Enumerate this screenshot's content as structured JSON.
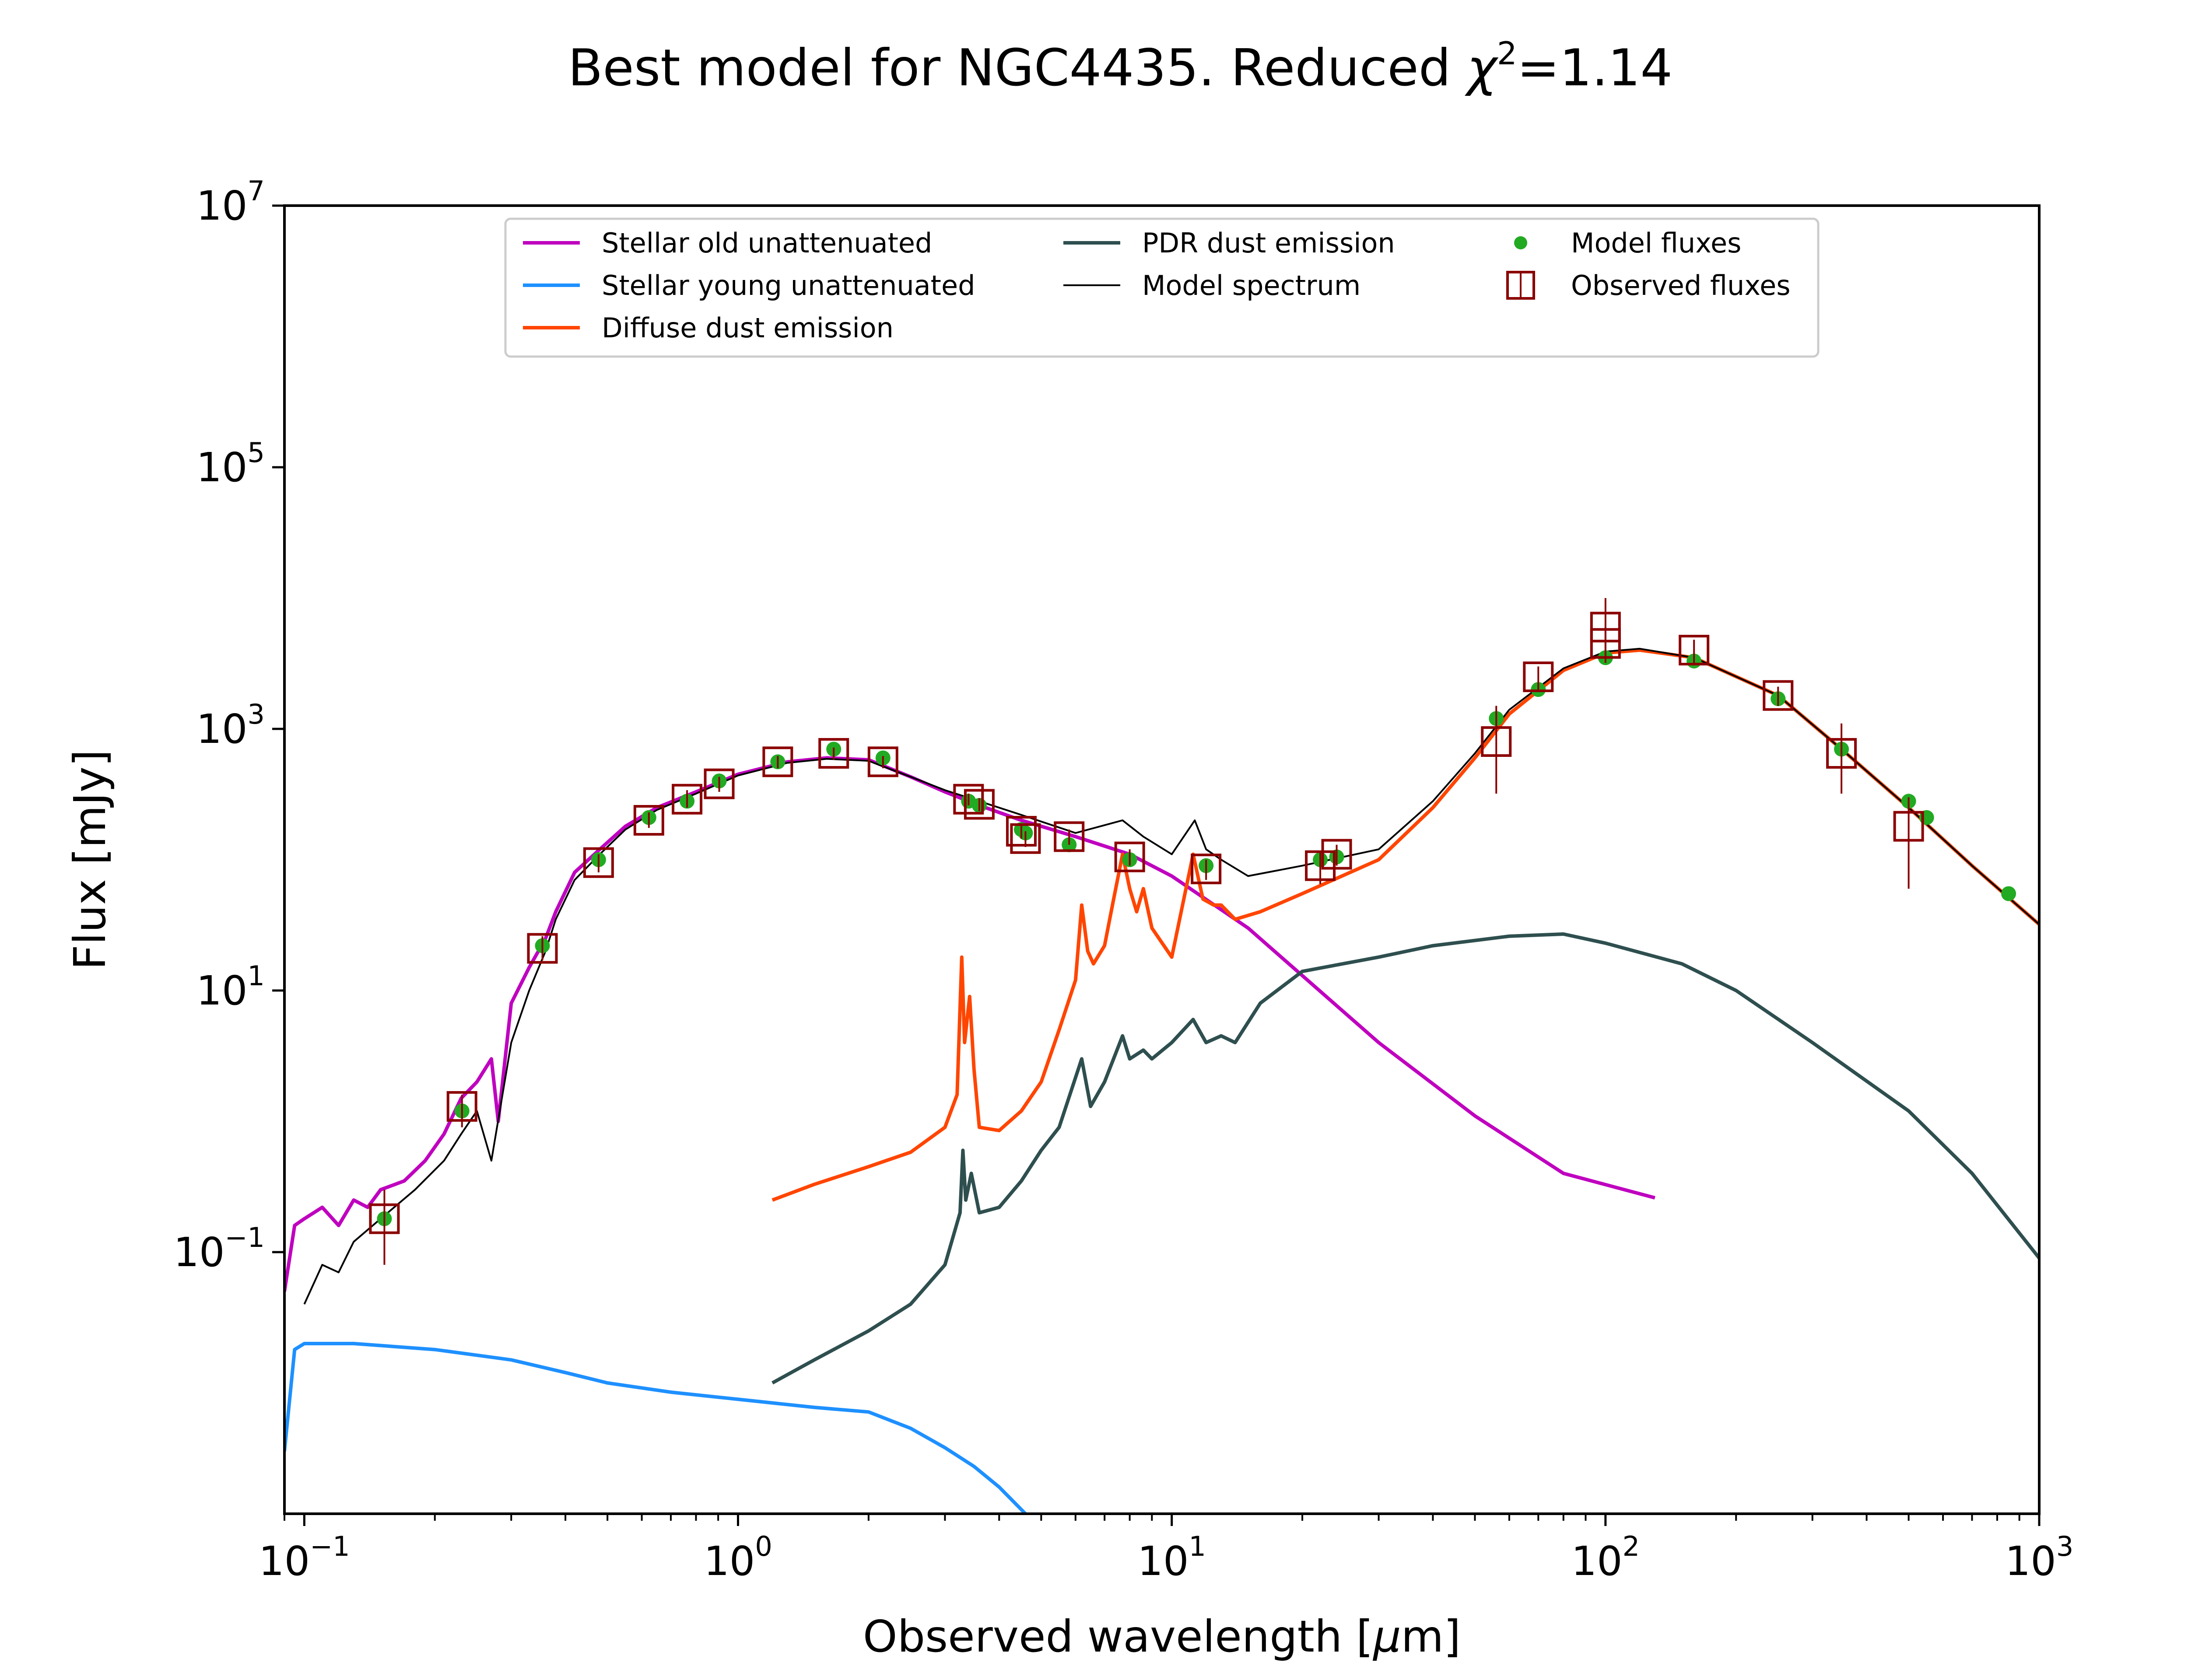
{
  "chart_data": {
    "type": "line",
    "title": "Best model for NGC4435. Reduced χ²=1.14",
    "title_parts": {
      "prefix": "Best model for NGC4435. Reduced ",
      "chi": "χ",
      "sup": "2",
      "suffix": "=1.14"
    },
    "xlabel": "Observed wavelength [μm]",
    "xlabel_parts": {
      "prefix": "Observed wavelength [",
      "mu": "μ",
      "suffix": "m]"
    },
    "ylabel": "Flux [mJy]",
    "xscale": "log",
    "yscale": "log",
    "xlim": [
      0.09,
      1000
    ],
    "ylim": [
      0.001,
      10000000
    ],
    "xticks": [
      {
        "value": 0.1,
        "base": "10",
        "exp": "−1"
      },
      {
        "value": 1,
        "base": "10",
        "exp": "0"
      },
      {
        "value": 10,
        "base": "10",
        "exp": "1"
      },
      {
        "value": 100,
        "base": "10",
        "exp": "2"
      },
      {
        "value": 1000,
        "base": "10",
        "exp": "3"
      }
    ],
    "yticks": [
      {
        "value": 0.1,
        "base": "10",
        "exp": "−1"
      },
      {
        "value": 10,
        "base": "10",
        "exp": "1"
      },
      {
        "value": 1000,
        "base": "10",
        "exp": "3"
      },
      {
        "value": 100000,
        "base": "10",
        "exp": "5"
      },
      {
        "value": 10000000,
        "base": "10",
        "exp": "7"
      }
    ],
    "legend_position": "top",
    "series": [
      {
        "name": "Stellar old unattenuated",
        "kind": "line",
        "color": "#bf00bf",
        "points": [
          [
            0.09,
            0.05
          ],
          [
            0.095,
            0.16
          ],
          [
            0.1,
            0.18
          ],
          [
            0.11,
            0.22
          ],
          [
            0.12,
            0.16
          ],
          [
            0.13,
            0.25
          ],
          [
            0.14,
            0.22
          ],
          [
            0.15,
            0.3
          ],
          [
            0.17,
            0.35
          ],
          [
            0.19,
            0.5
          ],
          [
            0.21,
            0.8
          ],
          [
            0.23,
            1.5
          ],
          [
            0.25,
            2.0
          ],
          [
            0.27,
            3.0
          ],
          [
            0.28,
            1.0
          ],
          [
            0.3,
            8
          ],
          [
            0.33,
            15
          ],
          [
            0.36,
            25
          ],
          [
            0.38,
            40
          ],
          [
            0.42,
            80
          ],
          [
            0.48,
            120
          ],
          [
            0.55,
            180
          ],
          [
            0.65,
            250
          ],
          [
            0.8,
            330
          ],
          [
            1.0,
            450
          ],
          [
            1.3,
            560
          ],
          [
            1.6,
            600
          ],
          [
            2.0,
            580
          ],
          [
            2.5,
            430
          ],
          [
            3.0,
            330
          ],
          [
            3.6,
            260
          ],
          [
            4.5,
            200
          ],
          [
            6,
            150
          ],
          [
            8,
            110
          ],
          [
            10,
            75
          ],
          [
            15,
            30
          ],
          [
            20,
            13
          ],
          [
            30,
            4
          ],
          [
            50,
            1.1
          ],
          [
            80,
            0.4
          ],
          [
            130,
            0.26
          ]
        ]
      },
      {
        "name": "Stellar young unattenuated",
        "kind": "line",
        "color": "#1e90ff",
        "points": [
          [
            0.09,
            0.003
          ],
          [
            0.095,
            0.018
          ],
          [
            0.1,
            0.02
          ],
          [
            0.13,
            0.02
          ],
          [
            0.2,
            0.018
          ],
          [
            0.3,
            0.015
          ],
          [
            0.4,
            0.012
          ],
          [
            0.5,
            0.01
          ],
          [
            0.7,
            0.0085
          ],
          [
            1.0,
            0.0075
          ],
          [
            1.5,
            0.0065
          ],
          [
            2.0,
            0.006
          ],
          [
            2.5,
            0.0045
          ],
          [
            3.0,
            0.0032
          ],
          [
            3.5,
            0.0023
          ],
          [
            4.0,
            0.0016
          ],
          [
            4.6,
            0.001
          ]
        ]
      },
      {
        "name": "Diffuse dust emission",
        "kind": "line",
        "color": "#ff4500",
        "points": [
          [
            1.2,
            0.25
          ],
          [
            1.5,
            0.33
          ],
          [
            2.0,
            0.45
          ],
          [
            2.5,
            0.58
          ],
          [
            3.0,
            0.9
          ],
          [
            3.2,
            1.6
          ],
          [
            3.28,
            18
          ],
          [
            3.33,
            4
          ],
          [
            3.42,
            9
          ],
          [
            3.5,
            2.5
          ],
          [
            3.6,
            0.9
          ],
          [
            4.0,
            0.85
          ],
          [
            4.5,
            1.2
          ],
          [
            5.0,
            2.0
          ],
          [
            5.5,
            5
          ],
          [
            6.0,
            12
          ],
          [
            6.2,
            45
          ],
          [
            6.4,
            20
          ],
          [
            6.6,
            16
          ],
          [
            7.0,
            22
          ],
          [
            7.3,
            45
          ],
          [
            7.7,
            110
          ],
          [
            8.0,
            60
          ],
          [
            8.3,
            40
          ],
          [
            8.6,
            60
          ],
          [
            9.0,
            30
          ],
          [
            10,
            18
          ],
          [
            11.2,
            110
          ],
          [
            11.8,
            50
          ],
          [
            12.5,
            45
          ],
          [
            13,
            45
          ],
          [
            14,
            35
          ],
          [
            16,
            40
          ],
          [
            20,
            55
          ],
          [
            30,
            100
          ],
          [
            40,
            250
          ],
          [
            50,
            600
          ],
          [
            60,
            1300
          ],
          [
            80,
            2800
          ],
          [
            100,
            3800
          ],
          [
            120,
            4000
          ],
          [
            160,
            3500
          ],
          [
            250,
            1800
          ],
          [
            350,
            700
          ],
          [
            500,
            250
          ],
          [
            700,
            90
          ],
          [
            1000,
            32
          ]
        ]
      },
      {
        "name": "PDR dust emission",
        "kind": "line",
        "color": "#2f4f4f",
        "points": [
          [
            1.2,
            0.01
          ],
          [
            1.5,
            0.015
          ],
          [
            2.0,
            0.025
          ],
          [
            2.5,
            0.04
          ],
          [
            3.0,
            0.08
          ],
          [
            3.25,
            0.2
          ],
          [
            3.3,
            0.6
          ],
          [
            3.35,
            0.25
          ],
          [
            3.45,
            0.4
          ],
          [
            3.6,
            0.2
          ],
          [
            4.0,
            0.22
          ],
          [
            4.5,
            0.35
          ],
          [
            5.0,
            0.6
          ],
          [
            5.5,
            0.9
          ],
          [
            6.2,
            3
          ],
          [
            6.5,
            1.3
          ],
          [
            7.0,
            2.0
          ],
          [
            7.7,
            4.5
          ],
          [
            8.0,
            3
          ],
          [
            8.6,
            3.5
          ],
          [
            9.0,
            3
          ],
          [
            10,
            4
          ],
          [
            11.2,
            6
          ],
          [
            12,
            4
          ],
          [
            13,
            4.5
          ],
          [
            14,
            4
          ],
          [
            16,
            8
          ],
          [
            20,
            14
          ],
          [
            30,
            18
          ],
          [
            40,
            22
          ],
          [
            60,
            26
          ],
          [
            80,
            27
          ],
          [
            100,
            23
          ],
          [
            150,
            16
          ],
          [
            200,
            10
          ],
          [
            300,
            4
          ],
          [
            500,
            1.2
          ],
          [
            700,
            0.4
          ],
          [
            1000,
            0.09
          ]
        ]
      },
      {
        "name": "Model spectrum",
        "kind": "line",
        "color": "#000000",
        "points": [
          [
            0.1,
            0.04
          ],
          [
            0.11,
            0.08
          ],
          [
            0.12,
            0.07
          ],
          [
            0.13,
            0.12
          ],
          [
            0.15,
            0.18
          ],
          [
            0.18,
            0.3
          ],
          [
            0.21,
            0.5
          ],
          [
            0.23,
            0.8
          ],
          [
            0.25,
            1.2
          ],
          [
            0.27,
            0.5
          ],
          [
            0.3,
            4
          ],
          [
            0.33,
            10
          ],
          [
            0.36,
            20
          ],
          [
            0.38,
            35
          ],
          [
            0.42,
            70
          ],
          [
            0.48,
            110
          ],
          [
            0.55,
            170
          ],
          [
            0.65,
            240
          ],
          [
            0.8,
            320
          ],
          [
            1.0,
            440
          ],
          [
            1.3,
            550
          ],
          [
            1.6,
            590
          ],
          [
            2.0,
            570
          ],
          [
            2.5,
            430
          ],
          [
            3.0,
            340
          ],
          [
            3.6,
            280
          ],
          [
            4.5,
            220
          ],
          [
            6,
            160
          ],
          [
            7.7,
            200
          ],
          [
            8.6,
            150
          ],
          [
            10,
            110
          ],
          [
            11.3,
            200
          ],
          [
            12,
            120
          ],
          [
            13,
            100
          ],
          [
            15,
            75
          ],
          [
            20,
            90
          ],
          [
            30,
            120
          ],
          [
            40,
            280
          ],
          [
            50,
            650
          ],
          [
            60,
            1400
          ],
          [
            80,
            2900
          ],
          [
            100,
            3900
          ],
          [
            120,
            4100
          ],
          [
            160,
            3500
          ],
          [
            250,
            1800
          ],
          [
            350,
            700
          ],
          [
            500,
            250
          ],
          [
            700,
            90
          ],
          [
            1000,
            32
          ]
        ]
      },
      {
        "name": "Model fluxes",
        "kind": "markers",
        "color": "#22aa22",
        "points": [
          [
            0.153,
            0.18
          ],
          [
            0.231,
            1.2
          ],
          [
            0.354,
            22
          ],
          [
            0.477,
            100
          ],
          [
            0.623,
            210
          ],
          [
            0.763,
            280
          ],
          [
            0.905,
            400
          ],
          [
            1.235,
            560
          ],
          [
            1.662,
            700
          ],
          [
            2.159,
            600
          ],
          [
            3.4,
            280
          ],
          [
            3.6,
            260
          ],
          [
            4.5,
            170
          ],
          [
            4.6,
            160
          ],
          [
            5.8,
            130
          ],
          [
            8.0,
            100
          ],
          [
            12,
            90
          ],
          [
            22,
            100
          ],
          [
            24,
            105
          ],
          [
            56,
            1200
          ],
          [
            70,
            2000
          ],
          [
            100,
            3500
          ],
          [
            160,
            3300
          ],
          [
            250,
            1700
          ],
          [
            350,
            700
          ],
          [
            500,
            280
          ],
          [
            550,
            210
          ],
          [
            850,
            55
          ]
        ]
      },
      {
        "name": "Observed fluxes",
        "kind": "errorboxes",
        "color": "#8b0000",
        "points": [
          [
            0.153,
            0.18,
            0.08,
            0.3
          ],
          [
            0.231,
            1.3,
            0.9,
            1.6
          ],
          [
            0.354,
            21,
            17,
            26
          ],
          [
            0.477,
            95,
            80,
            110
          ],
          [
            0.623,
            200,
            175,
            230
          ],
          [
            0.763,
            290,
            250,
            340
          ],
          [
            0.905,
            380,
            330,
            430
          ],
          [
            1.235,
            560,
            500,
            620
          ],
          [
            1.662,
            650,
            580,
            720
          ],
          [
            2.159,
            560,
            500,
            620
          ],
          [
            3.4,
            290,
            260,
            320
          ],
          [
            3.6,
            265,
            235,
            295
          ],
          [
            4.5,
            165,
            145,
            185
          ],
          [
            4.6,
            145,
            125,
            165
          ],
          [
            5.8,
            150,
            130,
            170
          ],
          [
            8.0,
            105,
            90,
            120
          ],
          [
            12,
            85,
            70,
            100
          ],
          [
            22,
            90,
            65,
            115
          ],
          [
            24,
            110,
            90,
            130
          ],
          [
            56,
            800,
            320,
            1500
          ],
          [
            70,
            2500,
            2000,
            3000
          ],
          [
            100,
            6000,
            3500,
            10000
          ],
          [
            100,
            4500,
            3200,
            6000
          ],
          [
            160,
            4000,
            3200,
            4800
          ],
          [
            250,
            1800,
            1500,
            2100
          ],
          [
            350,
            650,
            320,
            1100
          ],
          [
            500,
            180,
            60,
            300
          ]
        ]
      }
    ]
  }
}
